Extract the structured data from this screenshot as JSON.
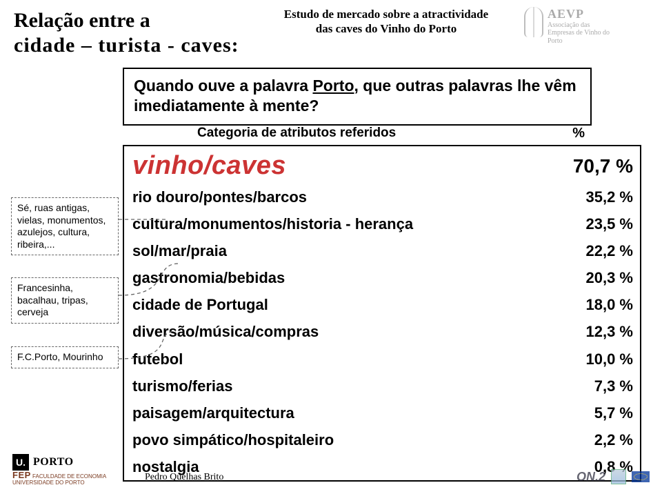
{
  "title": {
    "line1": "Relação entre a",
    "line2": "cidade – turista - caves:"
  },
  "study": {
    "line1": "Estudo de mercado sobre a atractividade",
    "line2": "das caves do Vinho do Porto"
  },
  "aevp": {
    "abbr": "AEVP",
    "sub1": "Associação das",
    "sub2": "Empresas de Vinho do",
    "sub3": "Porto"
  },
  "question": {
    "pre": "Quando ouve a palavra ",
    "porto": "Porto",
    "post": ", que outras palavras lhe vêm imediatamente à mente?"
  },
  "catHeader": {
    "label": "Categoria de atributos referidos",
    "pct": "%"
  },
  "rows": [
    {
      "name": "vinho/caves",
      "val": "70,7 %",
      "big": true
    },
    {
      "name": "rio douro/pontes/barcos",
      "val": "35,2 %"
    },
    {
      "name": "cultura/monumentos/historia - herança",
      "val": "23,5 %"
    },
    {
      "name": "sol/mar/praia",
      "val": "22,2 %"
    },
    {
      "name": "gastronomia/bebidas",
      "val": "20,3 %"
    },
    {
      "name": "cidade de Portugal",
      "val": "18,0 %"
    },
    {
      "name": "diversão/música/compras",
      "val": "12,3 %"
    },
    {
      "name": "futebol",
      "val": "10,0 %"
    },
    {
      "name": "turismo/ferias",
      "val": "7,3 %"
    },
    {
      "name": "paisagem/arquitectura",
      "val": "5,7 %"
    },
    {
      "name": "povo simpático/hospitaleiro",
      "val": "2,2 %"
    },
    {
      "name": "nostalgia",
      "val": "0,8 %"
    }
  ],
  "side1": "Sé, ruas antigas, vielas, monumentos, azulejos, cultura, ribeira,...",
  "side2": "Francesinha, bacalhau, tripas, cerveja",
  "side3": "F.C.Porto, Mourinho",
  "author": "Pedro Quelhas Brito",
  "uporto": {
    "u": "U.",
    "name": "PORTO"
  },
  "fep": {
    "abbr": "FEP",
    "l1": "FACULDADE DE ECONOMIA",
    "l2": "UNIVERSIDADE DO PORTO"
  },
  "on2": "ON.2",
  "colors": {
    "highlight": "#cc3333",
    "dash": "#666666",
    "border": "#000000"
  }
}
